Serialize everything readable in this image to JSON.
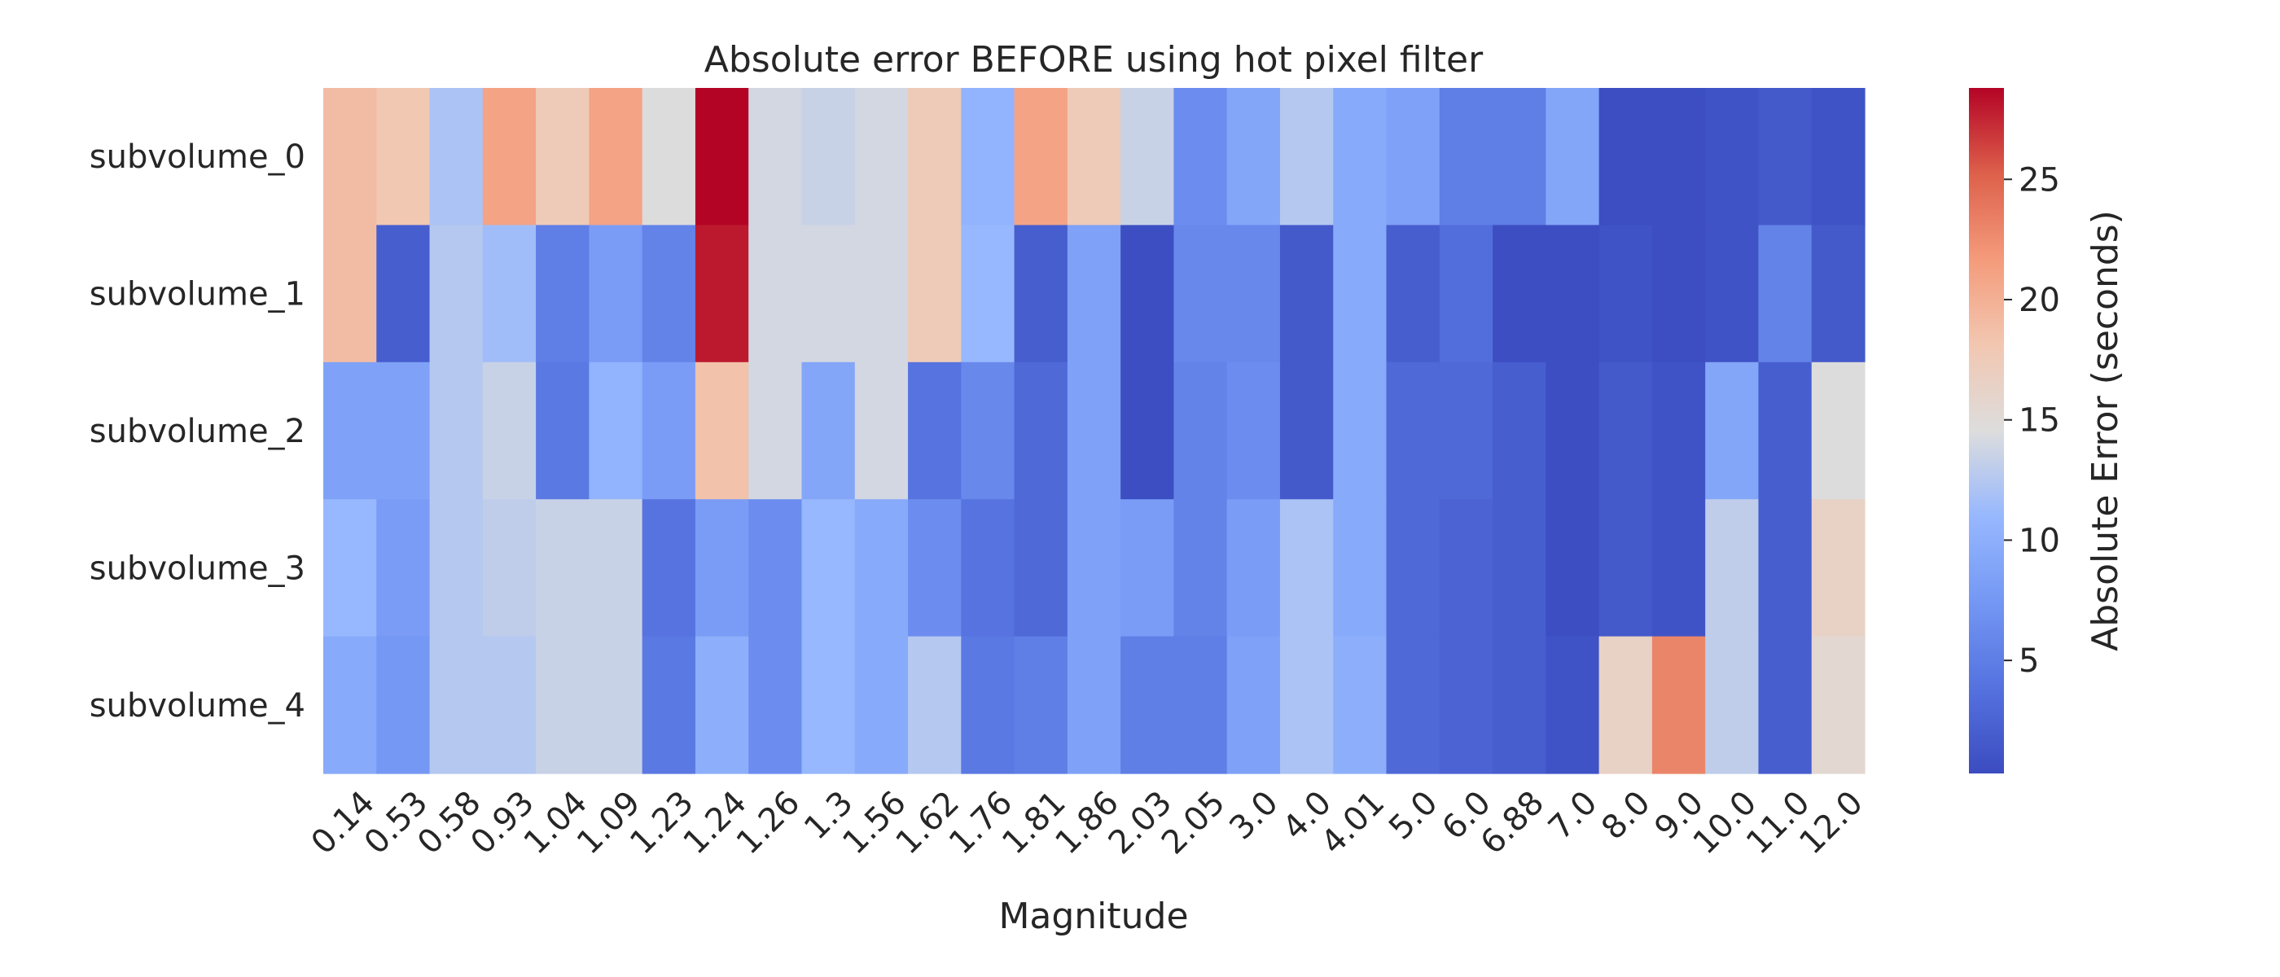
{
  "chart_data": {
    "type": "heatmap",
    "title": "Absolute error BEFORE using hot pixel filter",
    "xlabel": "Magnitude",
    "ylabel": "",
    "x_categories": [
      "0.14",
      "0.53",
      "0.58",
      "0.93",
      "1.04",
      "1.09",
      "1.23",
      "1.24",
      "1.26",
      "1.3",
      "1.56",
      "1.62",
      "1.76",
      "1.81",
      "1.86",
      "2.03",
      "2.05",
      "3.0",
      "4.0",
      "4.01",
      "5.0",
      "6.0",
      "6.88",
      "7.0",
      "8.0",
      "9.0",
      "10.0",
      "11.0",
      "12.0"
    ],
    "y_categories": [
      "subvolume_0",
      "subvolume_1",
      "subvolume_2",
      "subvolume_3",
      "subvolume_4"
    ],
    "values": [
      [
        19,
        18,
        12,
        21,
        17.5,
        21,
        14.5,
        29,
        14,
        13.5,
        14,
        17.5,
        10.5,
        21,
        17.5,
        13.5,
        6.5,
        9,
        12.5,
        9.5,
        8.5,
        5,
        5,
        9,
        0.5,
        0.5,
        1,
        1.5,
        1
      ],
      [
        19,
        2,
        12.5,
        11.5,
        5,
        8,
        5.5,
        28,
        14,
        14,
        14,
        17.5,
        11,
        2,
        8.5,
        0.5,
        6,
        6,
        1.5,
        9.5,
        2,
        3.5,
        0.5,
        0.5,
        1,
        0.5,
        1,
        5.5,
        1.5
      ],
      [
        8.5,
        8.5,
        12.5,
        13.5,
        4.5,
        10.5,
        8,
        18.5,
        14,
        9,
        14,
        4,
        6,
        3,
        8.5,
        0.5,
        5.5,
        6.5,
        1.5,
        9.5,
        3,
        3,
        2,
        0.5,
        1.5,
        1,
        9,
        2,
        14.5
      ],
      [
        11,
        8,
        12.5,
        13,
        13.5,
        13.5,
        4,
        8,
        6.5,
        11,
        9.5,
        6.5,
        4,
        3,
        8.5,
        8,
        5.5,
        8,
        12,
        9.5,
        3,
        2.5,
        2,
        0.5,
        1.5,
        1,
        13,
        2,
        16.5
      ],
      [
        9.5,
        7.5,
        12.5,
        12.5,
        13.5,
        13.5,
        4.5,
        10,
        6.5,
        11,
        9.5,
        12.5,
        4.5,
        5,
        8.5,
        5,
        5,
        8.5,
        12,
        10,
        3,
        2.5,
        2,
        1,
        16.5,
        23,
        13,
        2,
        15.5
      ]
    ],
    "colorbar": {
      "label": "Absolute Error (seconds)",
      "min": 0.3,
      "max": 28.8,
      "ticks": [
        5,
        10,
        15,
        20,
        25
      ],
      "colormap": "coolwarm"
    },
    "grid": false
  }
}
